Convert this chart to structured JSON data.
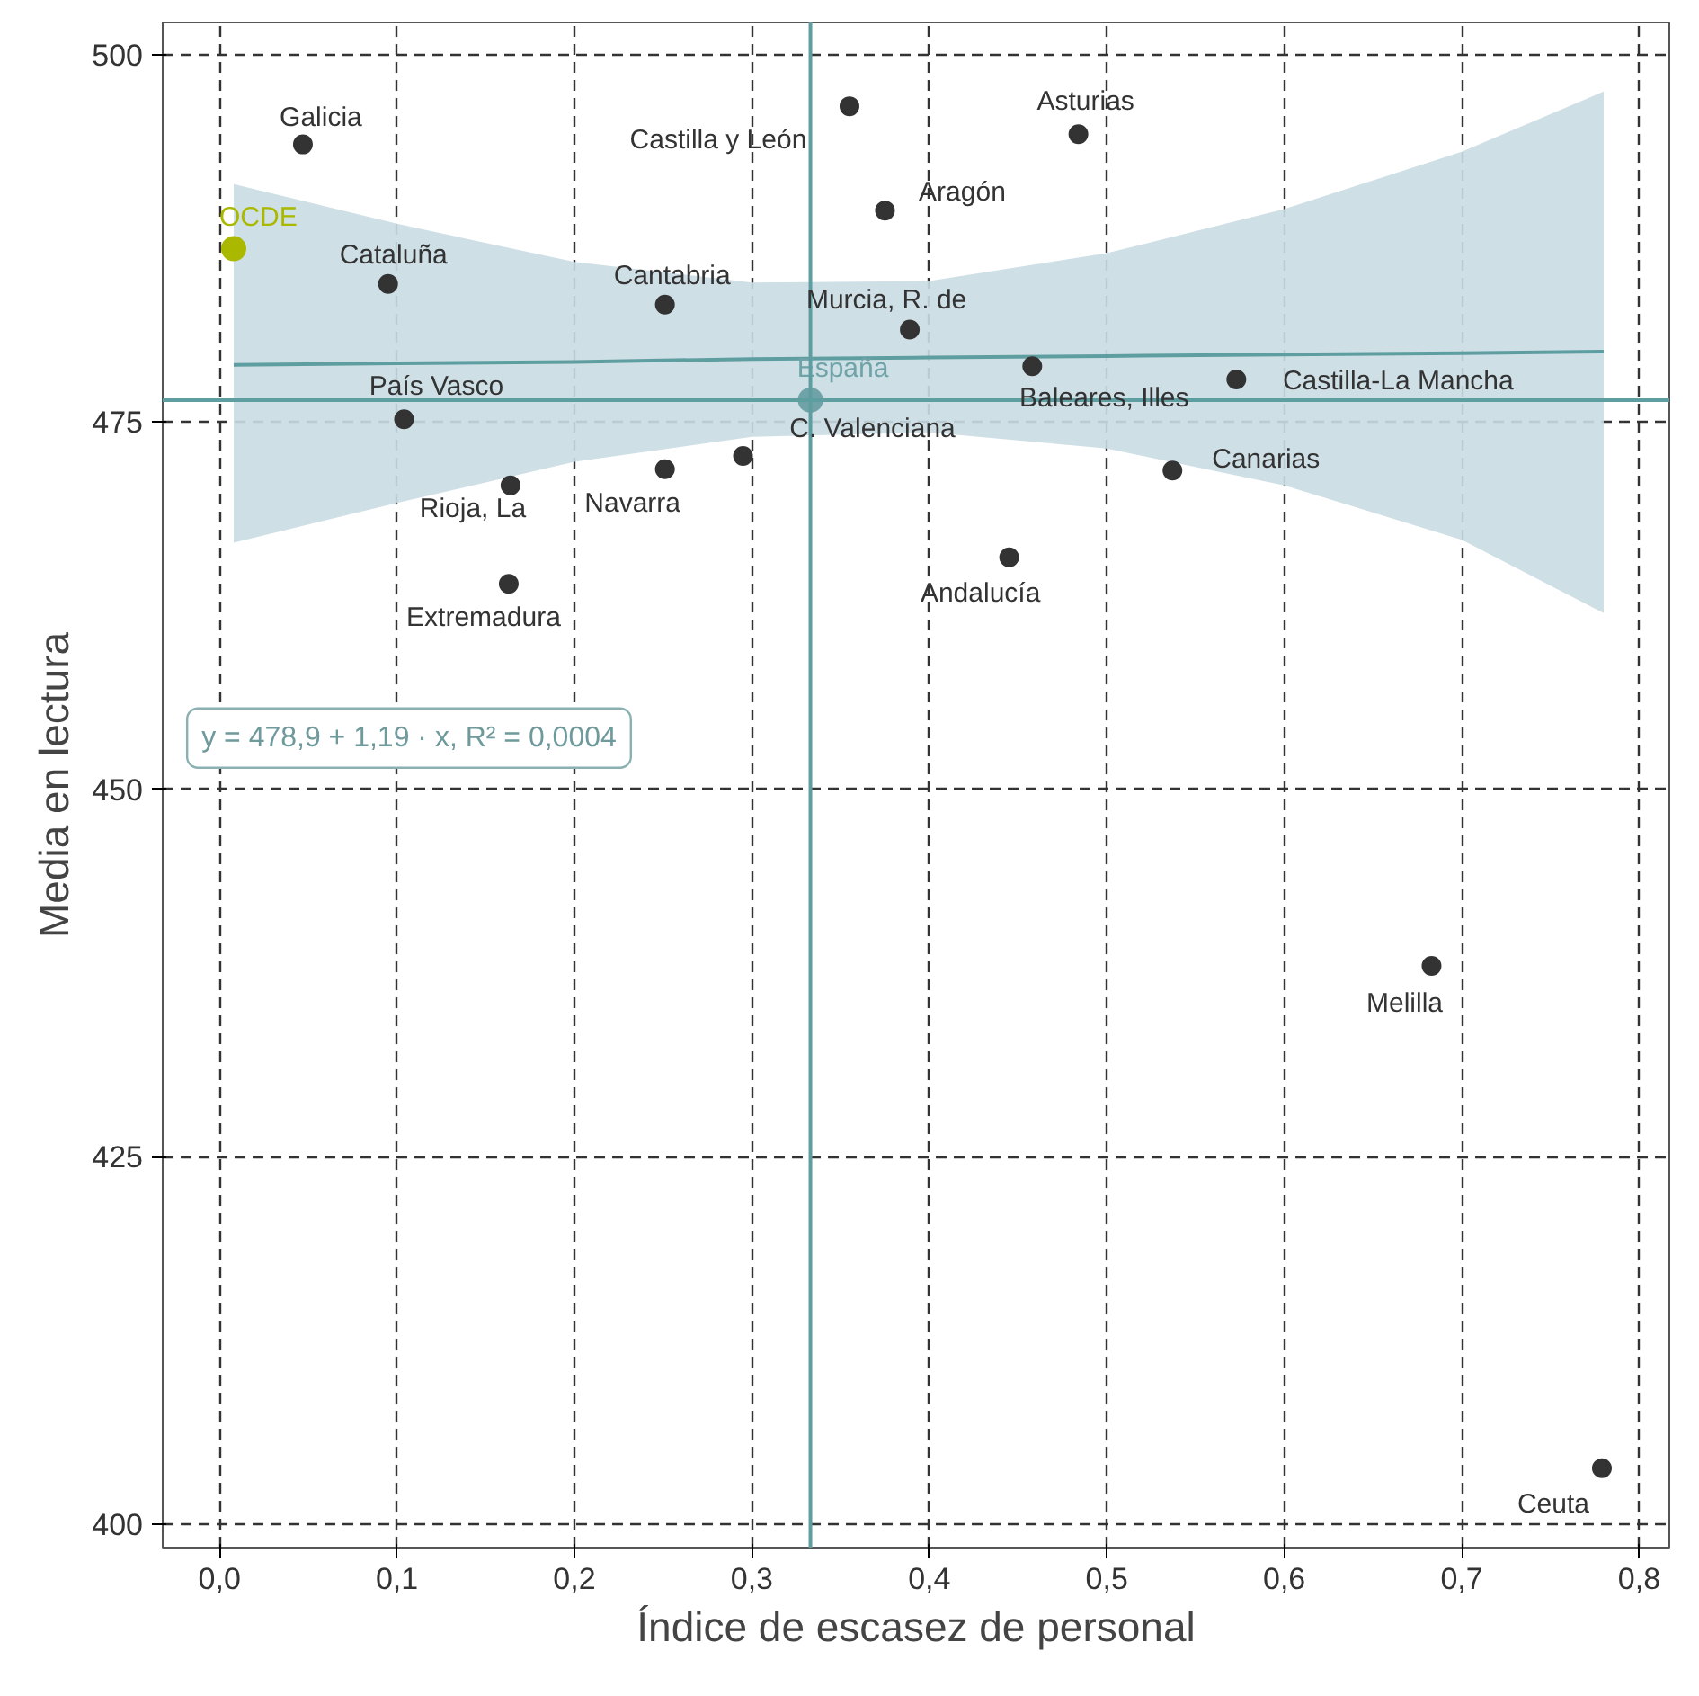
{
  "chart_data": {
    "type": "scatter",
    "xlabel": "Índice de escasez de personal",
    "ylabel": "Media en lectura",
    "xlim": [
      -0.032,
      0.817
    ],
    "ylim": [
      398.4,
      502.2
    ],
    "xticks": [
      {
        "value": 0,
        "label": "0,0"
      },
      {
        "value": 0.1,
        "label": "0,1"
      },
      {
        "value": 0.2,
        "label": "0,2"
      },
      {
        "value": 0.3,
        "label": "0,3"
      },
      {
        "value": 0.4,
        "label": "0,4"
      },
      {
        "value": 0.5,
        "label": "0,5"
      },
      {
        "value": 0.6,
        "label": "0,6"
      },
      {
        "value": 0.7,
        "label": "0,7"
      },
      {
        "value": 0.8,
        "label": "0,8"
      }
    ],
    "yticks": [
      400,
      425,
      450,
      475,
      500
    ],
    "grid": true,
    "series": [
      {
        "type": "line",
        "color": "#5f9ea0",
        "x": [
          0.008,
          0.1,
          0.2,
          0.3,
          0.4,
          0.5,
          0.6,
          0.7,
          0.78
        ],
        "values": [
          478.9,
          479.0,
          479.1,
          479.3,
          479.4,
          479.5,
          479.6,
          479.7,
          479.8
        ],
        "lower": [
          466.8,
          469.5,
          472.3,
          474,
          474.3,
          473.2,
          470.7,
          467,
          462
        ],
        "upper": [
          491.2,
          488.5,
          485.9,
          484.5,
          484.6,
          486.5,
          489.5,
          493.4,
          497.5
        ]
      },
      {
        "marker": "circle",
        "color": "#333333",
        "x": [
          0.047,
          0.095,
          0.104,
          0.164,
          0.163,
          0.251,
          0.295,
          0.251,
          0.355,
          0.375,
          0.389,
          0.484,
          0.458,
          0.573,
          0.537,
          0.445,
          0.683,
          0.779
        ],
        "values": [
          493.9,
          484.4,
          475.2,
          470.7,
          464.0,
          471.8,
          472.7,
          483.0,
          496.5,
          489.4,
          481.3,
          494.6,
          478.8,
          477.9,
          471.7,
          465.8,
          438.0,
          403.8
        ]
      },
      {
        "marker": "circle",
        "name": "OCDE",
        "color": "#aab800",
        "x": [
          0.008
        ],
        "values": [
          486.8
        ]
      },
      {
        "marker": "circle",
        "name": "España",
        "color": "#6fa3a8",
        "x": [
          0.333
        ],
        "values": [
          476.5
        ]
      }
    ],
    "ref_lines": [
      {
        "axis": "x",
        "value": 0.333,
        "color": "#5f9ea0"
      },
      {
        "axis": "y",
        "value": 476.5,
        "color": "#5f9ea0"
      }
    ],
    "annotations": [
      {
        "text": "Galicia",
        "x": 0.047,
        "y": 493.9
      },
      {
        "text": "Cataluña",
        "x": 0.095,
        "y": 484.4
      },
      {
        "text": "País Vasco",
        "x": 0.104,
        "y": 475.2
      },
      {
        "text": "Rioja, La",
        "x": 0.164,
        "y": 470.7
      },
      {
        "text": "Extremadura",
        "x": 0.163,
        "y": 464.0
      },
      {
        "text": "Navarra",
        "x": 0.251,
        "y": 471.8
      },
      {
        "text": "C. Valenciana",
        "x": 0.295,
        "y": 472.7
      },
      {
        "text": "Cantabria",
        "x": 0.251,
        "y": 483.0
      },
      {
        "text": "Castilla y León",
        "x": 0.355,
        "y": 496.5
      },
      {
        "text": "Aragón",
        "x": 0.375,
        "y": 489.4
      },
      {
        "text": "Murcia, R. de",
        "x": 0.389,
        "y": 481.3
      },
      {
        "text": "Asturias",
        "x": 0.484,
        "y": 494.6
      },
      {
        "text": "Baleares, Illes",
        "x": 0.458,
        "y": 478.8
      },
      {
        "text": "Castilla-La Mancha",
        "x": 0.573,
        "y": 477.9
      },
      {
        "text": "Canarias",
        "x": 0.537,
        "y": 471.7
      },
      {
        "text": "Andalucía",
        "x": 0.445,
        "y": 465.8
      },
      {
        "text": "Melilla",
        "x": 0.683,
        "y": 438.0
      },
      {
        "text": "Ceuta",
        "x": 0.779,
        "y": 403.8
      },
      "y = 478,9 + 1,19 · x, R² = 0,0004"
    ]
  }
}
